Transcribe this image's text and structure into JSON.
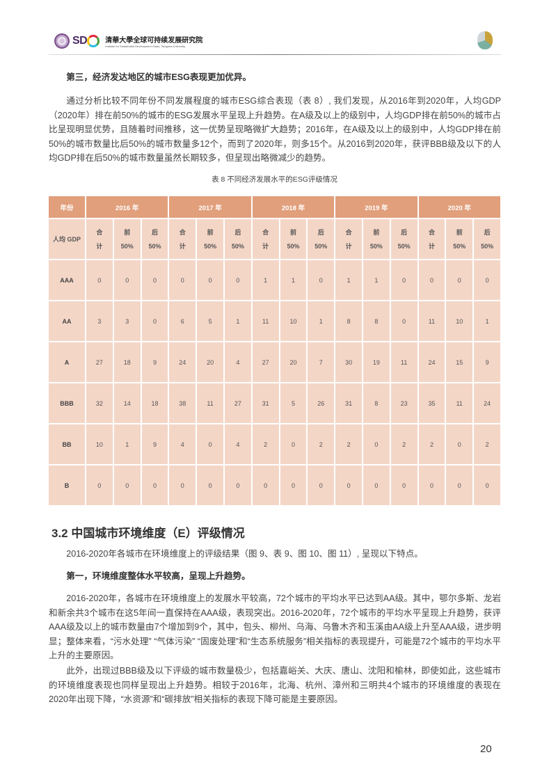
{
  "header": {
    "logo_text": "SD",
    "institute_cn": "全球可持续发展研究院",
    "institute_en": "Institute for Sustainable Development Goals, Tsinghua University",
    "tsinghua": "清華大學"
  },
  "heading_3": "第三，经济发达地区的城市ESG表现更加优异。",
  "para_1": "通过分析比较不同年份不同发展程度的城市ESG综合表现（表 8）, 我们发现，从2016年到2020年，人均GDP（2020年）排在前50%的城市的ESG发展水平呈现上升趋势。在A级及以上的级别中，人均GDP排在前50%的城市占比呈现明显优势，且随着时间推移，这一优势呈现略微扩大趋势；2016年，在A级及以上的级别中，人均GDP排在前50%的城市数量比后50%的城市数量多12个，而到了2020年，则多15个。从2016到2020年，获评BBB级及以下的人均GDP排在后50%的城市数量虽然长期较多，但呈现出略微减少的趋势。",
  "table": {
    "caption": "表 8  不同经济发展水平的ESG评级情况",
    "corner_top": "年份",
    "corner_sub": "人均 GDP",
    "years": [
      "2016 年",
      "2017 年",
      "2018 年",
      "2019 年",
      "2020 年"
    ],
    "subcols": [
      [
        "合",
        "计"
      ],
      [
        "前",
        "50%"
      ],
      [
        "后",
        "50%"
      ]
    ],
    "rows": [
      {
        "label": "AAA",
        "values": [
          "0",
          "0",
          "0",
          "0",
          "0",
          "0",
          "1",
          "1",
          "0",
          "1",
          "1",
          "0",
          "0",
          "0",
          "0"
        ]
      },
      {
        "label": "AA",
        "values": [
          "3",
          "3",
          "0",
          "6",
          "5",
          "1",
          "11",
          "10",
          "1",
          "8",
          "8",
          "0",
          "11",
          "10",
          "1"
        ]
      },
      {
        "label": "A",
        "values": [
          "27",
          "18",
          "9",
          "24",
          "20",
          "4",
          "27",
          "20",
          "7",
          "30",
          "19",
          "11",
          "24",
          "15",
          "9"
        ]
      },
      {
        "label": "BBB",
        "values": [
          "32",
          "14",
          "18",
          "38",
          "11",
          "27",
          "31",
          "5",
          "26",
          "31",
          "8",
          "23",
          "35",
          "11",
          "24"
        ]
      },
      {
        "label": "BB",
        "values": [
          "10",
          "1",
          "9",
          "4",
          "0",
          "4",
          "2",
          "0",
          "2",
          "2",
          "0",
          "2",
          "2",
          "0",
          "2"
        ]
      },
      {
        "label": "B",
        "values": [
          "0",
          "0",
          "0",
          "0",
          "0",
          "0",
          "0",
          "0",
          "0",
          "0",
          "0",
          "0",
          "0",
          "0",
          "0"
        ]
      }
    ]
  },
  "section_title": "3.2 中国城市环境维度（E）评级情况",
  "para_2": "2016-2020年各城市在环境维度上的评级结果（图 9、表 9、图 10、图 11）, 呈现以下特点。",
  "heading_1": "第一，环境维度整体水平较高，呈现上升趋势。",
  "para_3": "2016-2020年，各城市在环境维度上的发展水平较高，72个城市的平均水平已达到AA级。其中，鄂尔多斯、龙岩和新余共3个城市在这5年间一直保持在AAA级，表现突出。2016-2020年，72个城市的平均水平呈现上升趋势，获评AAA级及以上的城市数量由7个增加到9个，其中，包头、柳州、乌海、乌鲁木齐和玉溪由AA级上升至AAA级，进步明显；整体来看，“污水处理” “气体污染” “固废处理”和“生态系统服务”相关指标的表现提升，可能是72个城市的平均水平上升的主要原因。",
  "para_4": "此外，出现过BBB级及以下评级的城市数量极少，包括嘉峪关、大庆、唐山、沈阳和榆林，即使如此，这些城市的环境维度表现也同样呈现出上升趋势。相较于2016年，北海、杭州、漳州和三明共4个城市的环境维度的表现在2020年出现下降，“水资源”和“碳排放”相关指标的表现下降可能是主要原因。",
  "page_number": "20",
  "colors": {
    "header_fill": "#e19f7c",
    "cell_fill": "#f4d6c7"
  }
}
